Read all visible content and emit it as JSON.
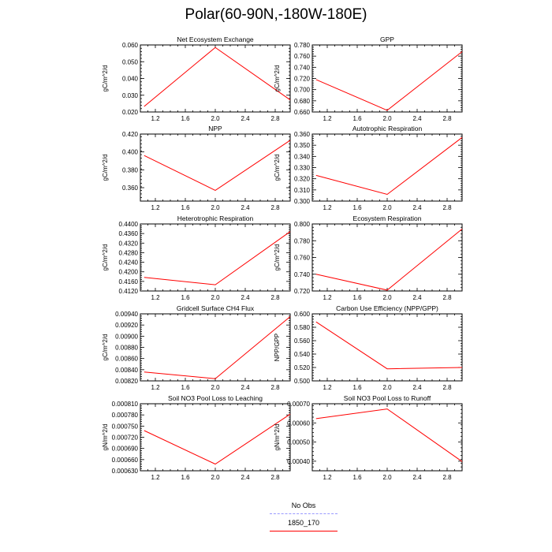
{
  "title": "Polar(60-90N,-180W-180E)",
  "legend": [
    {
      "label": "No Obs",
      "style": "dashed",
      "color": "#9999ff"
    },
    {
      "label": "1850_170",
      "style": "solid",
      "color": "#ff0000"
    }
  ],
  "chart_data": [
    {
      "type": "line",
      "title": "Net Ecosystem Exchange",
      "ylabel": "gC/m^2/d",
      "xlim": [
        1.0,
        3.0
      ],
      "xticks": [
        "1.2",
        "1.6",
        "2.0",
        "2.4",
        "2.8"
      ],
      "ylim": [
        0.02,
        0.06
      ],
      "yticks": [
        "0.020",
        "0.030",
        "0.040",
        "0.050",
        "0.060"
      ],
      "series": [
        {
          "x": [
            1.05,
            2.0,
            3.0
          ],
          "y": [
            0.0233,
            0.0585,
            0.0272
          ]
        }
      ]
    },
    {
      "type": "line",
      "title": "GPP",
      "ylabel": "gC/m^2/d",
      "xlim": [
        1.0,
        3.0
      ],
      "xticks": [
        "1.2",
        "1.6",
        "2.0",
        "2.4",
        "2.8"
      ],
      "ylim": [
        0.66,
        0.78
      ],
      "yticks": [
        "0.660",
        "0.680",
        "0.700",
        "0.720",
        "0.740",
        "0.760",
        "0.780"
      ],
      "series": [
        {
          "x": [
            1.05,
            2.0,
            3.0
          ],
          "y": [
            0.718,
            0.663,
            0.768
          ]
        }
      ]
    },
    {
      "type": "line",
      "title": "NPP",
      "ylabel": "gC/m^2/d",
      "xlim": [
        1.0,
        3.0
      ],
      "xticks": [
        "1.2",
        "1.6",
        "2.0",
        "2.4",
        "2.8"
      ],
      "ylim": [
        0.345,
        0.42
      ],
      "yticks": [
        "0.360",
        "0.380",
        "0.400",
        "0.420"
      ],
      "series": [
        {
          "x": [
            1.05,
            2.0,
            3.0
          ],
          "y": [
            0.396,
            0.357,
            0.413
          ]
        }
      ]
    },
    {
      "type": "line",
      "title": "Autotrophic Respiration",
      "ylabel": "gC/m^2/d",
      "xlim": [
        1.0,
        3.0
      ],
      "xticks": [
        "1.2",
        "1.6",
        "2.0",
        "2.4",
        "2.8"
      ],
      "ylim": [
        0.3,
        0.36
      ],
      "yticks": [
        "0.300",
        "0.310",
        "0.320",
        "0.330",
        "0.340",
        "0.350",
        "0.360"
      ],
      "series": [
        {
          "x": [
            1.05,
            2.0,
            3.0
          ],
          "y": [
            0.323,
            0.306,
            0.357
          ]
        }
      ]
    },
    {
      "type": "line",
      "title": "Heterotrophic Respiration",
      "ylabel": "gC/m^2/d",
      "xlim": [
        1.0,
        3.0
      ],
      "xticks": [
        "1.2",
        "1.6",
        "2.0",
        "2.4",
        "2.8"
      ],
      "ylim": [
        0.412,
        0.44
      ],
      "yticks": [
        "0.4120",
        "0.4160",
        "0.4200",
        "0.4240",
        "0.4280",
        "0.4320",
        "0.4360",
        "0.4400"
      ],
      "series": [
        {
          "x": [
            1.05,
            2.0,
            3.0
          ],
          "y": [
            0.4177,
            0.4146,
            0.4368
          ]
        }
      ]
    },
    {
      "type": "line",
      "title": "Ecosystem Respiration",
      "ylabel": "gC/m^2/d",
      "xlim": [
        1.0,
        3.0
      ],
      "xticks": [
        "1.2",
        "1.6",
        "2.0",
        "2.4",
        "2.8"
      ],
      "ylim": [
        0.72,
        0.8
      ],
      "yticks": [
        "0.720",
        "0.740",
        "0.760",
        "0.780",
        "0.800"
      ],
      "series": [
        {
          "x": [
            1.05,
            2.0,
            3.0
          ],
          "y": [
            0.74,
            0.721,
            0.794
          ]
        }
      ]
    },
    {
      "type": "line",
      "title": "Gridcell Surface CH4 Flux",
      "ylabel": "gC/m^2/d",
      "xlim": [
        1.0,
        3.0
      ],
      "xticks": [
        "1.2",
        "1.6",
        "2.0",
        "2.4",
        "2.8"
      ],
      "ylim": [
        0.0082,
        0.0094
      ],
      "yticks": [
        "0.00820",
        "0.00840",
        "0.00860",
        "0.00880",
        "0.00900",
        "0.00920",
        "0.00940"
      ],
      "series": [
        {
          "x": [
            1.05,
            2.0,
            3.0
          ],
          "y": [
            0.00836,
            0.00824,
            0.00935
          ]
        }
      ]
    },
    {
      "type": "line",
      "title": "Carbon Use Efficiency (NPP/GPP)",
      "ylabel": "NPP/GPP",
      "xlim": [
        1.0,
        3.0
      ],
      "xticks": [
        "1.2",
        "1.6",
        "2.0",
        "2.4",
        "2.8"
      ],
      "ylim": [
        0.5,
        0.6
      ],
      "yticks": [
        "0.500",
        "0.520",
        "0.540",
        "0.560",
        "0.580",
        "0.600"
      ],
      "series": [
        {
          "x": [
            1.05,
            2.0,
            3.0
          ],
          "y": [
            0.588,
            0.518,
            0.52
          ]
        }
      ]
    },
    {
      "type": "line",
      "title": "Soil NO3 Pool Loss to Leaching",
      "ylabel": "gN/m^2/d",
      "xlim": [
        1.0,
        3.0
      ],
      "xticks": [
        "1.2",
        "1.6",
        "2.0",
        "2.4",
        "2.8"
      ],
      "ylim": [
        0.00063,
        0.00081
      ],
      "yticks": [
        "0.000630",
        "0.000660",
        "0.000690",
        "0.000720",
        "0.000750",
        "0.000780",
        "0.000810"
      ],
      "series": [
        {
          "x": [
            1.05,
            2.0,
            3.0
          ],
          "y": [
            0.000738,
            0.000648,
            0.000782
          ]
        }
      ]
    },
    {
      "type": "line",
      "title": "Soil NO3 Pool Loss to Runoff",
      "ylabel": "gN/m^2/d",
      "xlim": [
        1.0,
        3.0
      ],
      "xticks": [
        "1.2",
        "1.6",
        "2.0",
        "2.4",
        "2.8"
      ],
      "ylim": [
        0.00035,
        0.0007
      ],
      "yticks": [
        "0.00040",
        "0.00050",
        "0.00060",
        "0.00070"
      ],
      "series": [
        {
          "x": [
            1.05,
            2.0,
            3.0
          ],
          "y": [
            0.000622,
            0.000673,
            0.000398
          ]
        }
      ]
    }
  ]
}
